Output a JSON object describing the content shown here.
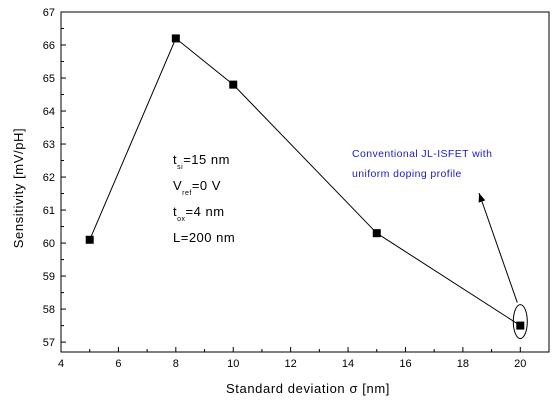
{
  "chart_data": {
    "type": "line",
    "title": "",
    "xlabel": "Standard deviation σ [nm]",
    "ylabel": "Sensitivity [mV/pH]",
    "xlim": [
      4,
      21
    ],
    "ylim": [
      56.7,
      67
    ],
    "x_ticks": [
      4,
      6,
      8,
      10,
      12,
      14,
      16,
      18,
      20
    ],
    "y_ticks": [
      57,
      58,
      59,
      60,
      61,
      62,
      63,
      64,
      65,
      66,
      67
    ],
    "grid": false,
    "series": [
      {
        "x": [
          5,
          8,
          10,
          15,
          20
        ],
        "y": [
          60.1,
          66.2,
          64.8,
          60.3,
          57.5
        ],
        "marker": "square",
        "color": "#000000"
      }
    ],
    "parameters": [
      {
        "base": "t",
        "sub": "si",
        "text": "=15 nm"
      },
      {
        "base": "V",
        "sub": "ref",
        "text": "=0 V"
      },
      {
        "base": "t",
        "sub": "ox",
        "text": "=4 nm"
      },
      {
        "base": "L",
        "sub": "",
        "text": "=200 nm"
      }
    ],
    "annotation": {
      "lines": [
        "Conventional JL-ISFET with",
        "uniform doping profile"
      ],
      "color": "#1a1acc",
      "target_x": 20,
      "target_y": 57.5
    }
  }
}
